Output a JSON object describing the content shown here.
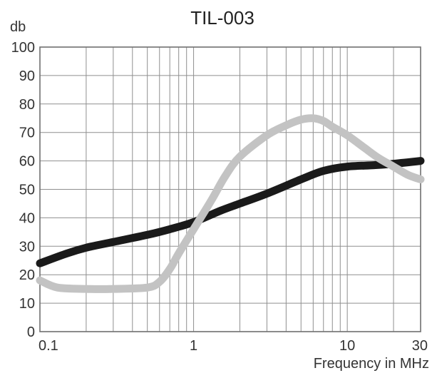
{
  "chart_data": {
    "type": "line",
    "title": "TIL-003",
    "ylabel": "db",
    "xlabel": "Frequency in MHz",
    "x_scale": "log",
    "xlim": [
      0.1,
      30
    ],
    "ylim": [
      0,
      100
    ],
    "grid": true,
    "x_ticks": [
      {
        "value": 0.1,
        "label": "0.1"
      },
      {
        "value": 1,
        "label": "1"
      },
      {
        "value": 10,
        "label": "10"
      },
      {
        "value": 30,
        "label": "30"
      }
    ],
    "y_ticks": [
      0,
      10,
      20,
      30,
      40,
      50,
      60,
      70,
      80,
      90,
      100
    ],
    "series": [
      {
        "color": "#1a1a1a",
        "x": [
          0.1,
          0.15,
          0.2,
          0.3,
          0.5,
          0.7,
          1,
          1.5,
          2,
          3,
          5,
          7,
          10,
          15,
          20,
          30
        ],
        "y": [
          24,
          27.5,
          29.5,
          31.5,
          34,
          36,
          38.5,
          42.5,
          45,
          48.5,
          53.5,
          56.5,
          58,
          58.5,
          59,
          60
        ]
      },
      {
        "color": "#c3c3c3",
        "x": [
          0.1,
          0.13,
          0.2,
          0.3,
          0.5,
          0.6,
          0.7,
          0.8,
          1,
          1.3,
          1.6,
          2,
          3,
          4,
          5,
          6,
          7,
          8,
          10,
          13,
          16,
          20,
          25,
          30
        ],
        "y": [
          18,
          15.5,
          15,
          15,
          15.5,
          17.5,
          22,
          27.5,
          36,
          46,
          54.5,
          61.5,
          69,
          72.5,
          74.5,
          75,
          74,
          72,
          69,
          64.5,
          61,
          58,
          55,
          53.5
        ]
      }
    ]
  }
}
